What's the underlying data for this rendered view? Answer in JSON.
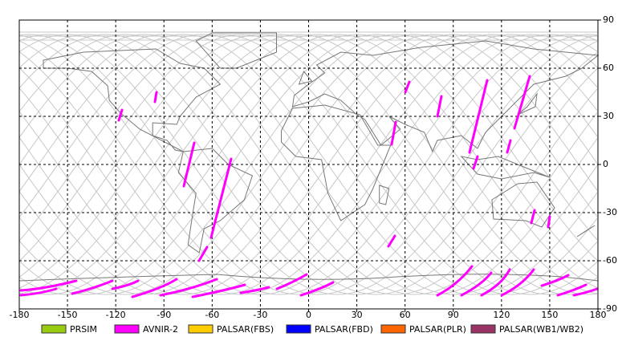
{
  "map": {
    "xlim": [
      -180,
      180
    ],
    "ylim": [
      -90,
      90
    ],
    "xticks": [
      -180,
      -150,
      -120,
      -90,
      -60,
      -30,
      0,
      30,
      60,
      90,
      120,
      150,
      180
    ],
    "yticks": [
      -90,
      -60,
      -30,
      0,
      30,
      60,
      90
    ],
    "grid": true
  },
  "legend": [
    {
      "name": "PRSIM",
      "color": "#99cc11"
    },
    {
      "name": "AVNIR-2",
      "color": "#ff00ff"
    },
    {
      "name": "PALSAR(FBS)",
      "color": "#ffcc00"
    },
    {
      "name": "PALSAR(FBD)",
      "color": "#0000ff"
    },
    {
      "name": "PALSAR(PLR)",
      "color": "#ff6600"
    },
    {
      "name": "PALSAR(WB1/WB2)",
      "color": "#993366"
    }
  ]
}
